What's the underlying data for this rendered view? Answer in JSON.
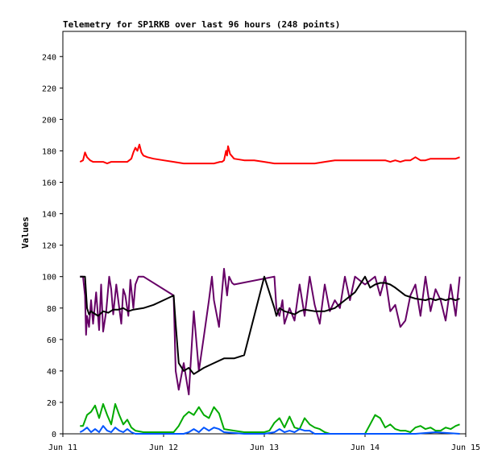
{
  "chart_data": {
    "type": "line",
    "title": "Telemetry for SP1RKB over last 96 hours (248 points)",
    "xlabel": "",
    "ylabel": "Values",
    "x_ticks": [
      "Jun 11",
      "Jun 12",
      "Jun 13",
      "Jun 14",
      "Jun 15"
    ],
    "x_range_days": [
      0,
      4
    ],
    "y_ticks": [
      0,
      20,
      40,
      60,
      80,
      100,
      120,
      140,
      160,
      180,
      200,
      220,
      240
    ],
    "ylim": [
      0,
      256
    ],
    "grid": false,
    "legend": "none",
    "series": [
      {
        "color": "#ff0000",
        "x": [
          0.17,
          0.2,
          0.22,
          0.24,
          0.27,
          0.3,
          0.35,
          0.4,
          0.44,
          0.48,
          0.52,
          0.56,
          0.6,
          0.64,
          0.68,
          0.7,
          0.72,
          0.74,
          0.76,
          0.78,
          0.8,
          0.84,
          0.9,
          1.0,
          1.1,
          1.2,
          1.3,
          1.4,
          1.5,
          1.56,
          1.58,
          1.6,
          1.62,
          1.63,
          1.64,
          1.66,
          1.7,
          1.8,
          1.9,
          2.0,
          2.1,
          2.2,
          2.3,
          2.4,
          2.5,
          2.6,
          2.7,
          2.8,
          2.9,
          3.0,
          3.1,
          3.15,
          3.2,
          3.25,
          3.3,
          3.35,
          3.4,
          3.45,
          3.5,
          3.55,
          3.6,
          3.65,
          3.7,
          3.75,
          3.8,
          3.85,
          3.9,
          3.94
        ],
        "values": [
          173,
          174,
          179,
          176,
          174,
          173,
          173,
          173,
          172,
          173,
          173,
          173,
          173,
          173,
          175,
          179,
          182,
          180,
          184,
          179,
          177,
          176,
          175,
          174,
          173,
          172,
          172,
          172,
          172,
          173,
          173,
          174,
          180,
          177,
          183,
          178,
          175,
          174,
          174,
          173,
          172,
          172,
          172,
          172,
          172,
          173,
          174,
          174,
          174,
          174,
          174,
          174,
          174,
          173,
          174,
          173,
          174,
          174,
          176,
          174,
          174,
          175,
          175,
          175,
          175,
          175,
          175,
          176
        ]
      },
      {
        "color": "#660066",
        "x": [
          0.17,
          0.2,
          0.22,
          0.23,
          0.24,
          0.26,
          0.28,
          0.3,
          0.33,
          0.36,
          0.38,
          0.4,
          0.43,
          0.46,
          0.48,
          0.5,
          0.53,
          0.56,
          0.58,
          0.6,
          0.62,
          0.65,
          0.67,
          0.7,
          0.72,
          0.75,
          0.8,
          1.1,
          1.12,
          1.15,
          1.2,
          1.25,
          1.3,
          1.35,
          1.4,
          1.45,
          1.48,
          1.5,
          1.55,
          1.6,
          1.63,
          1.65,
          1.68,
          1.7,
          2.1,
          2.12,
          2.15,
          2.18,
          2.2,
          2.25,
          2.3,
          2.35,
          2.4,
          2.45,
          2.5,
          2.55,
          2.6,
          2.65,
          2.7,
          2.75,
          2.8,
          2.85,
          2.9,
          3.0,
          3.1,
          3.15,
          3.2,
          3.25,
          3.3,
          3.35,
          3.4,
          3.45,
          3.5,
          3.55,
          3.6,
          3.65,
          3.7,
          3.75,
          3.8,
          3.85,
          3.9,
          3.94
        ],
        "values": [
          100,
          100,
          88,
          63,
          75,
          68,
          85,
          70,
          90,
          66,
          95,
          65,
          78,
          100,
          92,
          76,
          95,
          80,
          70,
          92,
          88,
          75,
          98,
          80,
          95,
          100,
          100,
          88,
          40,
          28,
          45,
          25,
          78,
          40,
          62,
          85,
          100,
          85,
          68,
          105,
          88,
          100,
          96,
          95,
          100,
          80,
          75,
          85,
          70,
          80,
          72,
          95,
          75,
          100,
          82,
          70,
          95,
          78,
          85,
          80,
          100,
          85,
          100,
          95,
          100,
          88,
          100,
          78,
          82,
          68,
          72,
          88,
          95,
          75,
          100,
          78,
          92,
          85,
          72,
          95,
          75,
          100
        ]
      },
      {
        "color": "#000000",
        "x": [
          0.17,
          0.2,
          0.22,
          0.24,
          0.26,
          0.28,
          0.3,
          0.35,
          0.4,
          0.45,
          0.5,
          0.55,
          0.6,
          0.65,
          0.7,
          0.8,
          0.9,
          1.0,
          1.1,
          1.12,
          1.15,
          1.2,
          1.25,
          1.3,
          1.35,
          1.4,
          1.5,
          1.6,
          1.7,
          1.8,
          2.0,
          2.1,
          2.12,
          2.15,
          2.2,
          2.25,
          2.3,
          2.35,
          2.4,
          2.5,
          2.6,
          2.7,
          2.8,
          2.9,
          3.0,
          3.05,
          3.1,
          3.15,
          3.2,
          3.25,
          3.3,
          3.4,
          3.5,
          3.6,
          3.65,
          3.7,
          3.75,
          3.8,
          3.85,
          3.9,
          3.94
        ],
        "values": [
          100,
          100,
          100,
          80,
          76,
          78,
          77,
          75,
          78,
          77,
          79,
          79,
          80,
          78,
          79,
          80,
          82,
          85,
          88,
          70,
          45,
          40,
          42,
          38,
          40,
          42,
          45,
          48,
          48,
          50,
          100,
          80,
          75,
          80,
          78,
          77,
          76,
          78,
          79,
          78,
          78,
          80,
          85,
          90,
          100,
          93,
          95,
          96,
          96,
          95,
          93,
          88,
          86,
          85,
          86,
          85,
          86,
          85,
          86,
          85,
          86
        ]
      },
      {
        "color": "#00aa00",
        "x": [
          0.17,
          0.2,
          0.24,
          0.28,
          0.32,
          0.36,
          0.4,
          0.44,
          0.48,
          0.52,
          0.56,
          0.6,
          0.64,
          0.68,
          0.72,
          0.8,
          0.9,
          1.0,
          1.1,
          1.15,
          1.2,
          1.25,
          1.3,
          1.35,
          1.4,
          1.45,
          1.5,
          1.55,
          1.6,
          1.7,
          1.8,
          1.9,
          2.0,
          2.05,
          2.1,
          2.15,
          2.2,
          2.25,
          2.3,
          2.35,
          2.4,
          2.45,
          2.5,
          2.55,
          2.6,
          2.65,
          2.7,
          2.8,
          2.9,
          3.0,
          3.05,
          3.1,
          3.15,
          3.2,
          3.25,
          3.3,
          3.35,
          3.4,
          3.45,
          3.5,
          3.55,
          3.6,
          3.65,
          3.7,
          3.75,
          3.8,
          3.85,
          3.9,
          3.94
        ],
        "values": [
          5,
          5,
          12,
          14,
          18,
          10,
          19,
          12,
          6,
          19,
          12,
          6,
          9,
          4,
          2,
          1,
          1,
          1,
          1,
          5,
          11,
          14,
          12,
          17,
          12,
          10,
          17,
          13,
          3,
          2,
          1,
          1,
          1,
          2,
          7,
          10,
          4,
          11,
          4,
          3,
          10,
          6,
          4,
          3,
          1,
          0,
          0,
          0,
          0,
          0,
          6,
          12,
          10,
          4,
          6,
          3,
          2,
          2,
          1,
          4,
          5,
          3,
          4,
          2,
          2,
          4,
          3,
          5,
          6
        ]
      },
      {
        "color": "#0055ff",
        "x": [
          0.17,
          0.2,
          0.24,
          0.28,
          0.32,
          0.36,
          0.4,
          0.44,
          0.48,
          0.52,
          0.56,
          0.6,
          0.64,
          0.68,
          0.72,
          1.0,
          1.2,
          1.25,
          1.3,
          1.35,
          1.4,
          1.45,
          1.5,
          1.55,
          1.6,
          1.8,
          2.0,
          2.1,
          2.15,
          2.2,
          2.25,
          2.3,
          2.35,
          2.4,
          2.45,
          2.5,
          3.0,
          3.5,
          3.7,
          3.94
        ],
        "values": [
          1,
          2,
          4,
          1,
          3,
          1,
          5,
          2,
          1,
          4,
          2,
          1,
          3,
          1,
          0,
          0,
          0,
          1,
          3,
          1,
          4,
          2,
          4,
          3,
          1,
          0,
          0,
          1,
          3,
          1,
          2,
          1,
          3,
          2,
          2,
          0,
          0,
          0,
          1,
          0
        ]
      }
    ]
  }
}
